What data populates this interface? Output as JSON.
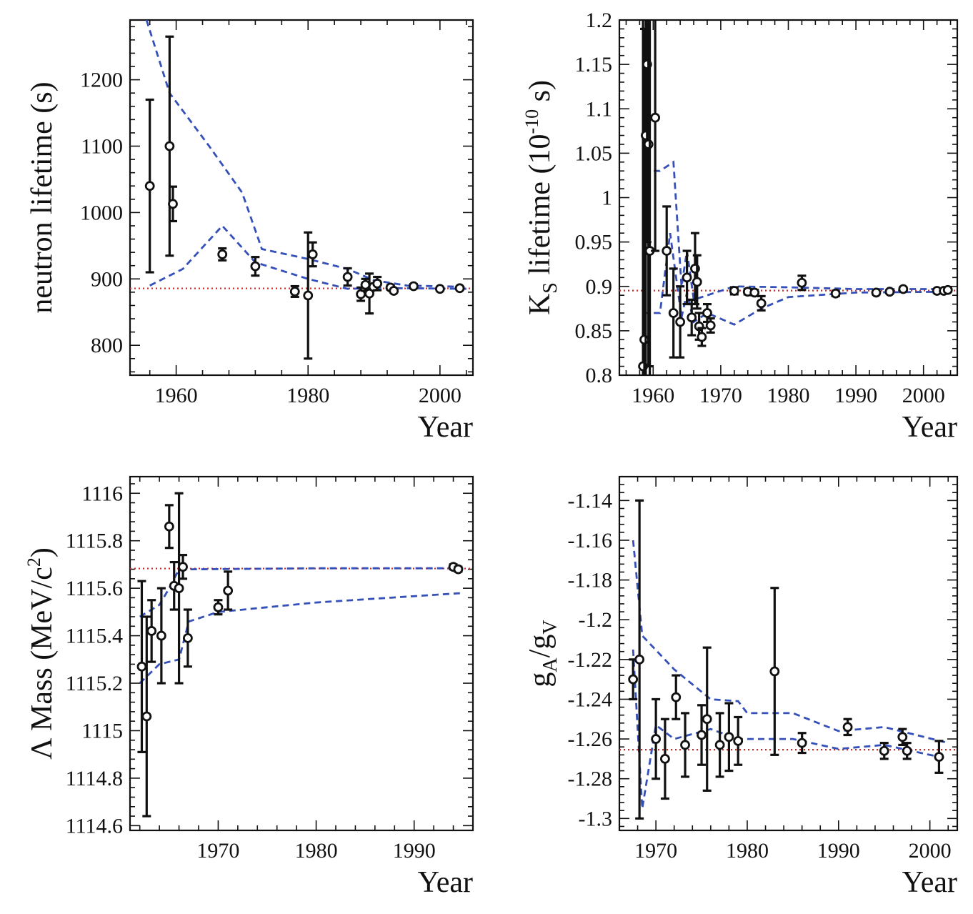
{
  "colors": {
    "points": "#111111",
    "ref_line": "#cc2a2a",
    "band": "#3550b8",
    "background": "#ffffff"
  },
  "chart_data": [
    {
      "id": "neutron",
      "type": "scatter",
      "xlabel": "Year",
      "ylabel": "neutron lifetime (s)",
      "xlim": [
        1953,
        2005
      ],
      "ylim": [
        755,
        1290
      ],
      "xticks": [
        1960,
        1980,
        2000
      ],
      "yticks": [
        800,
        900,
        1000,
        1100,
        1200
      ],
      "ytick_labels": [
        "800",
        "900",
        "1000",
        "1100",
        "1200"
      ],
      "reference": 885.7,
      "points": [
        {
          "x": 1956,
          "y": 1040,
          "err": 130
        },
        {
          "x": 1959,
          "y": 1100,
          "err": 165
        },
        {
          "x": 1959.5,
          "y": 1013,
          "err": 26
        },
        {
          "x": 1967,
          "y": 937,
          "err": 9
        },
        {
          "x": 1972,
          "y": 919,
          "err": 14
        },
        {
          "x": 1978,
          "y": 881,
          "err": 8
        },
        {
          "x": 1980,
          "y": 875,
          "err": 95
        },
        {
          "x": 1980.7,
          "y": 937,
          "err": 18
        },
        {
          "x": 1986,
          "y": 903,
          "err": 13
        },
        {
          "x": 1988,
          "y": 877,
          "err": 10
        },
        {
          "x": 1988.7,
          "y": 891,
          "err": 9
        },
        {
          "x": 1989.3,
          "y": 878,
          "err": 30
        },
        {
          "x": 1989.9,
          "y": 888,
          "err": 3
        },
        {
          "x": 1990.5,
          "y": 893,
          "err": 10
        },
        {
          "x": 1992.5,
          "y": 887,
          "err": 3
        },
        {
          "x": 1993,
          "y": 882,
          "err": 2
        },
        {
          "x": 1996,
          "y": 889,
          "err": 3
        },
        {
          "x": 2000,
          "y": 885,
          "err": 1
        },
        {
          "x": 2003,
          "y": 886,
          "err": 1
        }
      ],
      "band_upper": [
        [
          1955.5,
          1290
        ],
        [
          1959,
          1180
        ],
        [
          1965,
          1100
        ],
        [
          1970,
          1030
        ],
        [
          1973,
          945
        ],
        [
          1980,
          930
        ],
        [
          1986,
          915
        ],
        [
          1990,
          898
        ],
        [
          1995,
          890
        ],
        [
          2004,
          888
        ]
      ],
      "band_lower": [
        [
          1956,
          890
        ],
        [
          1961,
          915
        ],
        [
          1967,
          980
        ],
        [
          1972,
          925
        ],
        [
          1980,
          900
        ],
        [
          1986,
          885
        ],
        [
          1990,
          886
        ],
        [
          1995,
          886
        ],
        [
          2004,
          885
        ]
      ]
    },
    {
      "id": "kshort",
      "type": "scatter",
      "xlabel": "Year",
      "ylabel": "K lifetime (10 s)",
      "ylabel_sub": "S",
      "ylabel_sup": "-10",
      "xlim": [
        1955,
        2005
      ],
      "ylim": [
        0.8,
        1.2
      ],
      "xticks": [
        1960,
        1970,
        1980,
        1990,
        2000
      ],
      "yticks": [
        0.8,
        0.85,
        0.9,
        0.95,
        1,
        1.05,
        1.1,
        1.15,
        1.2
      ],
      "ytick_labels": [
        "0.8",
        "0.85",
        "0.9",
        "0.95",
        "1",
        "1.05",
        "1.1",
        "1.15",
        "1.2"
      ],
      "reference": 0.8953,
      "points": [
        {
          "x": 1958.5,
          "y": 0.81,
          "err": 0.4
        },
        {
          "x": 1958.7,
          "y": 0.84,
          "err": 0.35
        },
        {
          "x": 1958.9,
          "y": 1.07,
          "err": 0.3
        },
        {
          "x": 1959.1,
          "y": 1.15,
          "err": 0.2
        },
        {
          "x": 1959.3,
          "y": 1.06,
          "err": 0.25
        },
        {
          "x": 1959.5,
          "y": 0.94,
          "err": 0.3
        },
        {
          "x": 1960.3,
          "y": 1.09,
          "err": 0.15
        },
        {
          "x": 1962,
          "y": 0.94,
          "err": 0.05
        },
        {
          "x": 1963,
          "y": 0.87,
          "err": 0.05
        },
        {
          "x": 1964,
          "y": 0.86,
          "err": 0.04
        },
        {
          "x": 1965,
          "y": 0.91,
          "err": 0.03
        },
        {
          "x": 1965.7,
          "y": 0.865,
          "err": 0.02
        },
        {
          "x": 1966.2,
          "y": 0.92,
          "err": 0.04
        },
        {
          "x": 1966.5,
          "y": 0.905,
          "err": 0.03
        },
        {
          "x": 1966.8,
          "y": 0.855,
          "err": 0.015
        },
        {
          "x": 1967.2,
          "y": 0.843,
          "err": 0.01
        },
        {
          "x": 1968,
          "y": 0.87,
          "err": 0.01
        },
        {
          "x": 1968.5,
          "y": 0.856,
          "err": 0.008
        },
        {
          "x": 1972,
          "y": 0.895,
          "err": 0.004
        },
        {
          "x": 1974,
          "y": 0.894,
          "err": 0.003
        },
        {
          "x": 1975,
          "y": 0.893,
          "err": 0.003
        },
        {
          "x": 1976,
          "y": 0.881,
          "err": 0.008
        },
        {
          "x": 1982,
          "y": 0.904,
          "err": 0.008
        },
        {
          "x": 1987,
          "y": 0.892,
          "err": 0.003
        },
        {
          "x": 1993,
          "y": 0.893,
          "err": 0.002
        },
        {
          "x": 1995,
          "y": 0.894,
          "err": 0.002
        },
        {
          "x": 1997,
          "y": 0.897,
          "err": 0.002
        },
        {
          "x": 2002,
          "y": 0.895,
          "err": 0.002
        },
        {
          "x": 2003,
          "y": 0.895,
          "err": 0.002
        },
        {
          "x": 2003.6,
          "y": 0.896,
          "err": 0.002
        }
      ],
      "band_upper": [
        [
          1958.5,
          1.03
        ],
        [
          1961,
          1.03
        ],
        [
          1963,
          1.04
        ],
        [
          1964.2,
          0.9
        ],
        [
          1965,
          0.94
        ],
        [
          1966,
          0.885
        ],
        [
          1968,
          0.89
        ],
        [
          1972,
          0.9
        ],
        [
          1980,
          0.899
        ],
        [
          1990,
          0.897
        ],
        [
          2004,
          0.897
        ]
      ],
      "band_lower": [
        [
          1958.5,
          0.87
        ],
        [
          1961,
          0.87
        ],
        [
          1962.5,
          0.96
        ],
        [
          1964.2,
          0.865
        ],
        [
          1965,
          0.893
        ],
        [
          1966,
          0.86
        ],
        [
          1968,
          0.87
        ],
        [
          1972,
          0.857
        ],
        [
          1976,
          0.875
        ],
        [
          1980,
          0.888
        ],
        [
          1990,
          0.893
        ],
        [
          2004,
          0.894
        ]
      ]
    },
    {
      "id": "lambda",
      "type": "scatter",
      "xlabel": "Year",
      "ylabel": "Λ Mass (MeV/c )",
      "ylabel_sup": "2",
      "xlim": [
        1961,
        1996
      ],
      "ylim": [
        1114.58,
        1116.07
      ],
      "xticks": [
        1970,
        1980,
        1990
      ],
      "yticks": [
        1114.6,
        1114.8,
        1115,
        1115.2,
        1115.4,
        1115.6,
        1115.8,
        1116
      ],
      "ytick_labels": [
        "1114.6",
        "1114.8",
        "1115",
        "1115.2",
        "1115.4",
        "1115.6",
        "1115.8",
        "1116"
      ],
      "reference": 1115.683,
      "points": [
        {
          "x": 1962.2,
          "y": 1115.27,
          "err": 0.36
        },
        {
          "x": 1962.7,
          "y": 1115.06,
          "err": 0.42
        },
        {
          "x": 1963.2,
          "y": 1115.42,
          "err": 0.13
        },
        {
          "x": 1964.2,
          "y": 1115.4,
          "err": 0.2
        },
        {
          "x": 1965,
          "y": 1115.86,
          "err": 0.09
        },
        {
          "x": 1965.5,
          "y": 1115.61,
          "err": 0.1
        },
        {
          "x": 1966,
          "y": 1115.6,
          "err": 0.4
        },
        {
          "x": 1966.4,
          "y": 1115.69,
          "err": 0.05
        },
        {
          "x": 1966.9,
          "y": 1115.39,
          "err": 0.12
        },
        {
          "x": 1970,
          "y": 1115.52,
          "err": 0.03
        },
        {
          "x": 1971,
          "y": 1115.59,
          "err": 0.08
        },
        {
          "x": 1994,
          "y": 1115.69,
          "err": 0.01
        },
        {
          "x": 1994.5,
          "y": 1115.68,
          "err": 0.01
        }
      ],
      "band_upper": [
        [
          1962,
          1115.48
        ],
        [
          1964,
          1115.53
        ],
        [
          1965,
          1115.6
        ],
        [
          1966,
          1115.68
        ],
        [
          1968,
          1115.68
        ],
        [
          1980,
          1115.684
        ],
        [
          1995,
          1115.684
        ]
      ],
      "band_lower": [
        [
          1962,
          1115.2
        ],
        [
          1964,
          1115.28
        ],
        [
          1966,
          1115.3
        ],
        [
          1967,
          1115.46
        ],
        [
          1970,
          1115.5
        ],
        [
          1980,
          1115.54
        ],
        [
          1995,
          1115.58
        ]
      ]
    },
    {
      "id": "gagv",
      "type": "scatter",
      "xlabel": "Year",
      "ylabel": "g /g",
      "ylabel_sub1": "A",
      "ylabel_sub2": "V",
      "xlim": [
        1966,
        2003
      ],
      "ylim": [
        -1.306,
        -1.128
      ],
      "xticks": [
        1970,
        1980,
        1990,
        2000
      ],
      "yticks": [
        -1.3,
        -1.28,
        -1.26,
        -1.24,
        -1.22,
        -1.2,
        -1.18,
        -1.16,
        -1.14
      ],
      "ytick_labels": [
        "-1.3",
        "-1.28",
        "-1.26",
        "-1.24",
        "-1.22",
        "-1.2",
        "-1.18",
        "-1.16",
        "-1.14"
      ],
      "reference": -1.2654,
      "points": [
        {
          "x": 1967.5,
          "y": -1.23,
          "err": 0.01
        },
        {
          "x": 1968.2,
          "y": -1.22,
          "err": 0.08
        },
        {
          "x": 1970,
          "y": -1.26,
          "err": 0.02
        },
        {
          "x": 1971,
          "y": -1.27,
          "err": 0.02
        },
        {
          "x": 1972.2,
          "y": -1.239,
          "err": 0.011
        },
        {
          "x": 1973.2,
          "y": -1.263,
          "err": 0.016
        },
        {
          "x": 1975,
          "y": -1.258,
          "err": 0.015
        },
        {
          "x": 1975.6,
          "y": -1.25,
          "err": 0.036
        },
        {
          "x": 1977,
          "y": -1.263,
          "err": 0.016
        },
        {
          "x": 1978,
          "y": -1.259,
          "err": 0.017
        },
        {
          "x": 1979,
          "y": -1.261,
          "err": 0.012
        },
        {
          "x": 1983,
          "y": -1.226,
          "err": 0.042
        },
        {
          "x": 1986,
          "y": -1.262,
          "err": 0.005
        },
        {
          "x": 1991,
          "y": -1.254,
          "err": 0.004
        },
        {
          "x": 1995,
          "y": -1.266,
          "err": 0.004
        },
        {
          "x": 1997,
          "y": -1.259,
          "err": 0.004
        },
        {
          "x": 1997.5,
          "y": -1.266,
          "err": 0.004
        },
        {
          "x": 2001,
          "y": -1.269,
          "err": 0.008
        }
      ],
      "band_upper": [
        [
          1967.5,
          -1.16
        ],
        [
          1968.5,
          -1.208
        ],
        [
          1972,
          -1.225
        ],
        [
          1976,
          -1.24
        ],
        [
          1979,
          -1.241
        ],
        [
          1980,
          -1.247
        ],
        [
          1985,
          -1.247
        ],
        [
          1990,
          -1.256
        ],
        [
          1995,
          -1.254
        ],
        [
          2002,
          -1.262
        ]
      ],
      "band_lower": [
        [
          1967.5,
          -1.215
        ],
        [
          1968.5,
          -1.295
        ],
        [
          1970,
          -1.253
        ],
        [
          1972,
          -1.26
        ],
        [
          1976,
          -1.255
        ],
        [
          1979,
          -1.26
        ],
        [
          1985,
          -1.26
        ],
        [
          1990,
          -1.265
        ],
        [
          1995,
          -1.263
        ],
        [
          2002,
          -1.27
        ]
      ]
    }
  ]
}
